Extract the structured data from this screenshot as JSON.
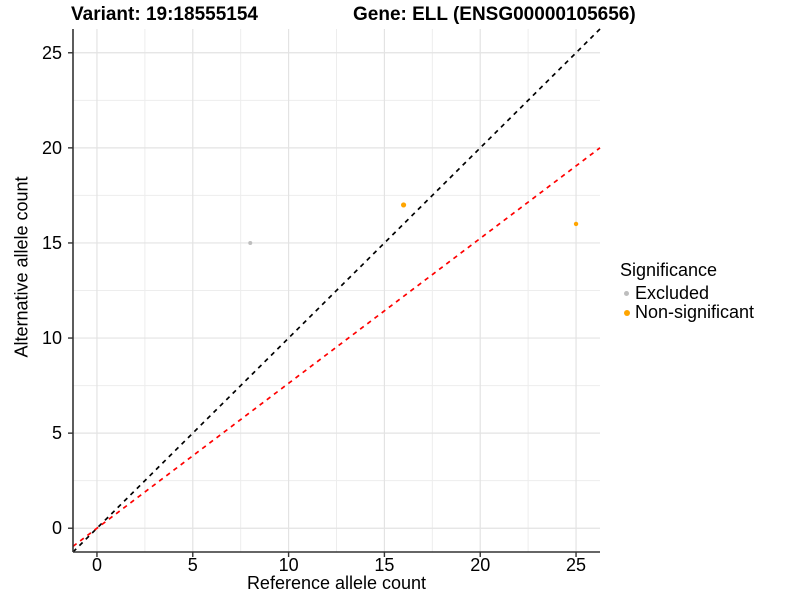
{
  "title": {
    "variant": "Variant: 19:18555154",
    "gene": "Gene: ELL (ENSG00000105656)"
  },
  "axes": {
    "x_label": "Reference allele count",
    "y_label": "Alternative allele count"
  },
  "legend": {
    "title": "Significance",
    "items": [
      {
        "label": "Excluded",
        "color": "#BEBEBE",
        "dot_size": 5
      },
      {
        "label": "Non-significant",
        "color": "#FFA500",
        "dot_size": 6
      }
    ]
  },
  "colors": {
    "axis_line": "#333333",
    "tick_mark": "#333333",
    "grid_major": "#E3E3E3",
    "grid_minor": "#EDEDED",
    "background": "#FFFFFF",
    "excluded_point": "#BEBEBE",
    "non_significant_point": "#FFA500",
    "identity_line": "#000000",
    "ratio_line": "#FF0000"
  },
  "chart_data": {
    "type": "scatter",
    "title": "Variant: 19:18555154    Gene: ELL (ENSG00000105656)",
    "xlabel": "Reference allele count",
    "ylabel": "Alternative allele count",
    "xlim": [
      -1.25,
      26.25
    ],
    "ylim": [
      -1.25,
      26.25
    ],
    "x_ticks": [
      0,
      5,
      10,
      15,
      20,
      25
    ],
    "y_ticks": [
      0,
      5,
      10,
      15,
      20,
      25
    ],
    "x_minor_ticks": [
      2.5,
      7.5,
      12.5,
      17.5,
      22.5
    ],
    "y_minor_ticks": [
      2.5,
      7.5,
      12.5,
      17.5,
      22.5
    ],
    "grid": true,
    "legend_position": "right",
    "legend_title": "Significance",
    "series": [
      {
        "name": "Excluded",
        "color": "#BEBEBE",
        "points": [
          {
            "x": 8,
            "y": 15,
            "r": 2.0
          }
        ]
      },
      {
        "name": "Non-significant",
        "color": "#FFA500",
        "points": [
          {
            "x": 16,
            "y": 17,
            "r": 2.6
          },
          {
            "x": 25,
            "y": 16,
            "r": 2.2
          }
        ]
      }
    ],
    "reference_lines": [
      {
        "name": "identity-line",
        "slope": 1,
        "intercept": 0,
        "color": "#000000",
        "dash": "4.5,4.5"
      },
      {
        "name": "ratio-line",
        "slope": 0.762,
        "intercept": 0,
        "color": "#FF0000",
        "dash": "4.5,4.5"
      }
    ]
  }
}
